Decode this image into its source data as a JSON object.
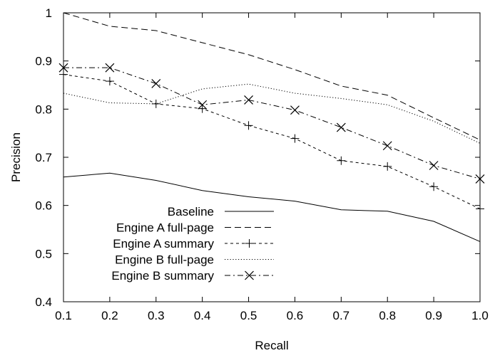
{
  "chart_data": {
    "type": "line",
    "title": "",
    "xlabel": "Recall",
    "ylabel": "Precision",
    "xlim": [
      0.1,
      1.0
    ],
    "ylim": [
      0.4,
      1.0
    ],
    "x": [
      0.1,
      0.2,
      0.3,
      0.4,
      0.5,
      0.6,
      0.7,
      0.8,
      0.9,
      1.0
    ],
    "x_tick_labels": [
      "0.1",
      "0.2",
      "0.3",
      "0.4",
      "0.5",
      "0.6",
      "0.7",
      "0.8",
      "0.9",
      "1.0"
    ],
    "y_ticks": [
      0.4,
      0.5,
      0.6,
      0.7,
      0.8,
      0.9,
      1.0
    ],
    "y_tick_labels": [
      "0.4",
      "0.5",
      "0.6",
      "0.7",
      "0.8",
      "0.9",
      "1"
    ],
    "grid": false,
    "legend_position": "bottom-left",
    "series": [
      {
        "name": "Baseline",
        "style": "solid",
        "marker": "none",
        "values": [
          0.659,
          0.667,
          0.652,
          0.631,
          0.618,
          0.609,
          0.591,
          0.588,
          0.567,
          0.525
        ]
      },
      {
        "name": "Engine A full-page",
        "style": "dashed",
        "marker": "none",
        "values": [
          1.0,
          0.972,
          0.963,
          0.938,
          0.913,
          0.882,
          0.848,
          0.829,
          0.782,
          0.736
        ]
      },
      {
        "name": "Engine A summary",
        "style": "short-dashed",
        "marker": "plus",
        "values": [
          0.872,
          0.858,
          0.811,
          0.801,
          0.766,
          0.739,
          0.693,
          0.681,
          0.639,
          0.593
        ]
      },
      {
        "name": "Engine B full-page",
        "style": "dotted",
        "marker": "none",
        "values": [
          0.833,
          0.813,
          0.811,
          0.842,
          0.852,
          0.833,
          0.822,
          0.809,
          0.775,
          0.729
        ]
      },
      {
        "name": "Engine B summary",
        "style": "dash-dot",
        "marker": "cross",
        "values": [
          0.886,
          0.886,
          0.853,
          0.809,
          0.819,
          0.798,
          0.762,
          0.724,
          0.683,
          0.655
        ]
      }
    ]
  }
}
